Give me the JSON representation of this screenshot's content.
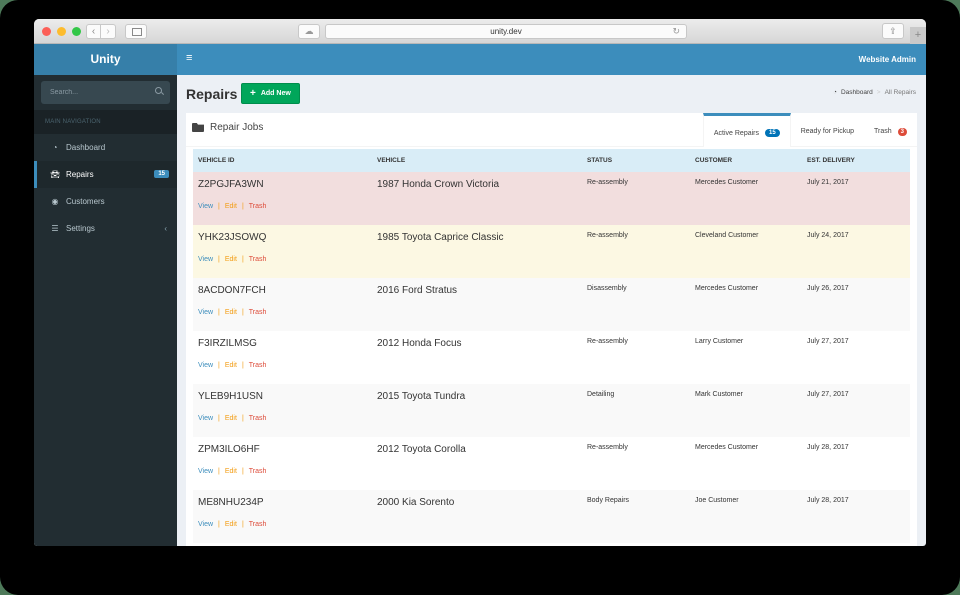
{
  "browser": {
    "url": "unity.dev"
  },
  "header": {
    "logo": "Unity",
    "user_menu": "Website Admin"
  },
  "sidebar": {
    "search_placeholder": "Search...",
    "nav_header": "MAIN NAVIGATION",
    "items": [
      {
        "label": "Dashboard",
        "icon": "dashboard-icon"
      },
      {
        "label": "Repairs",
        "icon": "car-icon",
        "badge": "15",
        "active": true
      },
      {
        "label": "Customers",
        "icon": "user-circle-icon"
      },
      {
        "label": "Settings",
        "icon": "sliders-icon",
        "chevron": "‹"
      }
    ]
  },
  "page": {
    "title": "Repairs",
    "add_button": "Add New",
    "breadcrumb": {
      "home": "Dashboard",
      "separator": ">",
      "current": "All Repairs"
    }
  },
  "box": {
    "title": "Repair Jobs",
    "tabs": [
      {
        "label": "Active Repairs",
        "badge": "15",
        "active": true
      },
      {
        "label": "Ready for Pickup"
      },
      {
        "label": "Trash",
        "badge": "3"
      }
    ]
  },
  "table": {
    "columns": [
      "VEHICLE ID",
      "VEHICLE",
      "STATUS",
      "CUSTOMER",
      "EST. DELIVERY"
    ],
    "action_labels": {
      "view": "View",
      "edit": "Edit",
      "trash": "Trash",
      "sep": "|"
    },
    "rows": [
      {
        "id": "Z2PGJFA3WN",
        "vehicle": "1987 Honda Crown Victoria",
        "status": "Re-assembly",
        "customer": "Mercedes Customer",
        "delivery": "July 21, 2017",
        "style": "danger"
      },
      {
        "id": "YHK23JSOWQ",
        "vehicle": "1985 Toyota Caprice Classic",
        "status": "Re-assembly",
        "customer": "Cleveland Customer",
        "delivery": "July 24, 2017",
        "style": "warning"
      },
      {
        "id": "8ACDON7FCH",
        "vehicle": "2016 Ford Stratus",
        "status": "Disassembly",
        "customer": "Mercedes Customer",
        "delivery": "July 26, 2017",
        "style": "odd"
      },
      {
        "id": "F3IRZILMSG",
        "vehicle": "2012 Honda Focus",
        "status": "Re-assembly",
        "customer": "Larry Customer",
        "delivery": "July 27, 2017",
        "style": "even"
      },
      {
        "id": "YLEB9H1USN",
        "vehicle": "2015 Toyota Tundra",
        "status": "Detailing",
        "customer": "Mark Customer",
        "delivery": "July 27, 2017",
        "style": "odd"
      },
      {
        "id": "ZPM3ILO6HF",
        "vehicle": "2012 Toyota Corolla",
        "status": "Re-assembly",
        "customer": "Mercedes Customer",
        "delivery": "July 28, 2017",
        "style": "even"
      },
      {
        "id": "ME8NHU234P",
        "vehicle": "2000 Kia Sorento",
        "status": "Body Repairs",
        "customer": "Joe Customer",
        "delivery": "July 28, 2017",
        "style": "odd"
      }
    ]
  },
  "colors": {
    "header": "#3c8dbc",
    "logo_bg": "#367fa9",
    "sidebar": "#222d32",
    "add_button": "#00a65a",
    "row_danger": "#f2dede",
    "row_warning": "#fcf8e3",
    "table_head": "#d9edf7"
  }
}
